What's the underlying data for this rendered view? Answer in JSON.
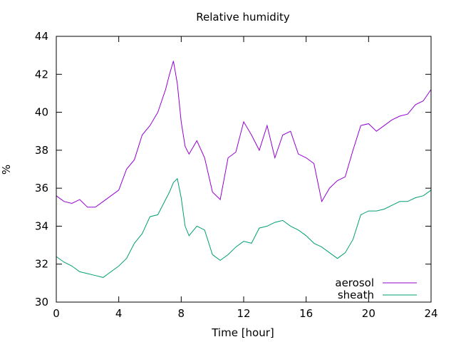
{
  "chart_data": {
    "type": "line",
    "title": "Relative humidity",
    "xlabel": "Time [hour]",
    "ylabel": "%",
    "xlim": [
      0,
      24
    ],
    "ylim": [
      30,
      44
    ],
    "xticks": [
      0,
      4,
      8,
      12,
      16,
      20,
      24
    ],
    "yticks": [
      30,
      32,
      34,
      36,
      38,
      40,
      42,
      44
    ],
    "grid": false,
    "legend_position": "bottom-right",
    "series": [
      {
        "name": "aerosol",
        "color": "#9400d3",
        "x": [
          0,
          0.5,
          1,
          1.5,
          2,
          2.5,
          3,
          3.5,
          4,
          4.5,
          5,
          5.5,
          6,
          6.5,
          7,
          7.25,
          7.5,
          7.75,
          8,
          8.25,
          8.5,
          9,
          9.5,
          10,
          10.5,
          11,
          11.5,
          12,
          12.5,
          13,
          13.5,
          14,
          14.5,
          15,
          15.5,
          16,
          16.5,
          17,
          17.5,
          18,
          18.5,
          19,
          19.5,
          20,
          20.5,
          21,
          21.5,
          22,
          22.5,
          23,
          23.5,
          24
        ],
        "y": [
          35.6,
          35.3,
          35.2,
          35.4,
          35.0,
          35.0,
          35.3,
          35.6,
          35.9,
          37.0,
          37.5,
          38.8,
          39.3,
          40.0,
          41.2,
          42.0,
          42.7,
          41.5,
          39.5,
          38.2,
          37.8,
          38.5,
          37.6,
          35.8,
          35.4,
          37.6,
          37.9,
          39.5,
          38.8,
          38.0,
          39.3,
          37.6,
          38.8,
          39.0,
          37.8,
          37.6,
          37.3,
          35.3,
          36.0,
          36.4,
          36.6,
          38.0,
          39.3,
          39.4,
          39.0,
          39.3,
          39.6,
          39.8,
          39.9,
          40.4,
          40.6,
          41.2
        ]
      },
      {
        "name": "sheath",
        "color": "#009e73",
        "x": [
          0,
          0.5,
          1,
          1.5,
          2,
          2.5,
          3,
          3.5,
          4,
          4.5,
          5,
          5.5,
          6,
          6.5,
          7,
          7.25,
          7.5,
          7.75,
          8,
          8.25,
          8.5,
          9,
          9.5,
          10,
          10.5,
          11,
          11.5,
          12,
          12.5,
          13,
          13.5,
          14,
          14.5,
          15,
          15.5,
          16,
          16.5,
          17,
          17.5,
          18,
          18.5,
          19,
          19.5,
          20,
          20.5,
          21,
          21.5,
          22,
          22.5,
          23,
          23.5,
          24
        ],
        "y": [
          32.4,
          32.1,
          31.9,
          31.6,
          31.5,
          31.4,
          31.3,
          31.6,
          31.9,
          32.3,
          33.1,
          33.6,
          34.5,
          34.6,
          35.4,
          35.8,
          36.3,
          36.5,
          35.5,
          34.0,
          33.5,
          34.0,
          33.8,
          32.5,
          32.2,
          32.5,
          32.9,
          33.2,
          33.1,
          33.9,
          34.0,
          34.2,
          34.3,
          34.0,
          33.8,
          33.5,
          33.1,
          32.9,
          32.6,
          32.3,
          32.6,
          33.3,
          34.6,
          34.8,
          34.8,
          34.9,
          35.1,
          35.3,
          35.3,
          35.5,
          35.6,
          35.9
        ]
      }
    ]
  }
}
